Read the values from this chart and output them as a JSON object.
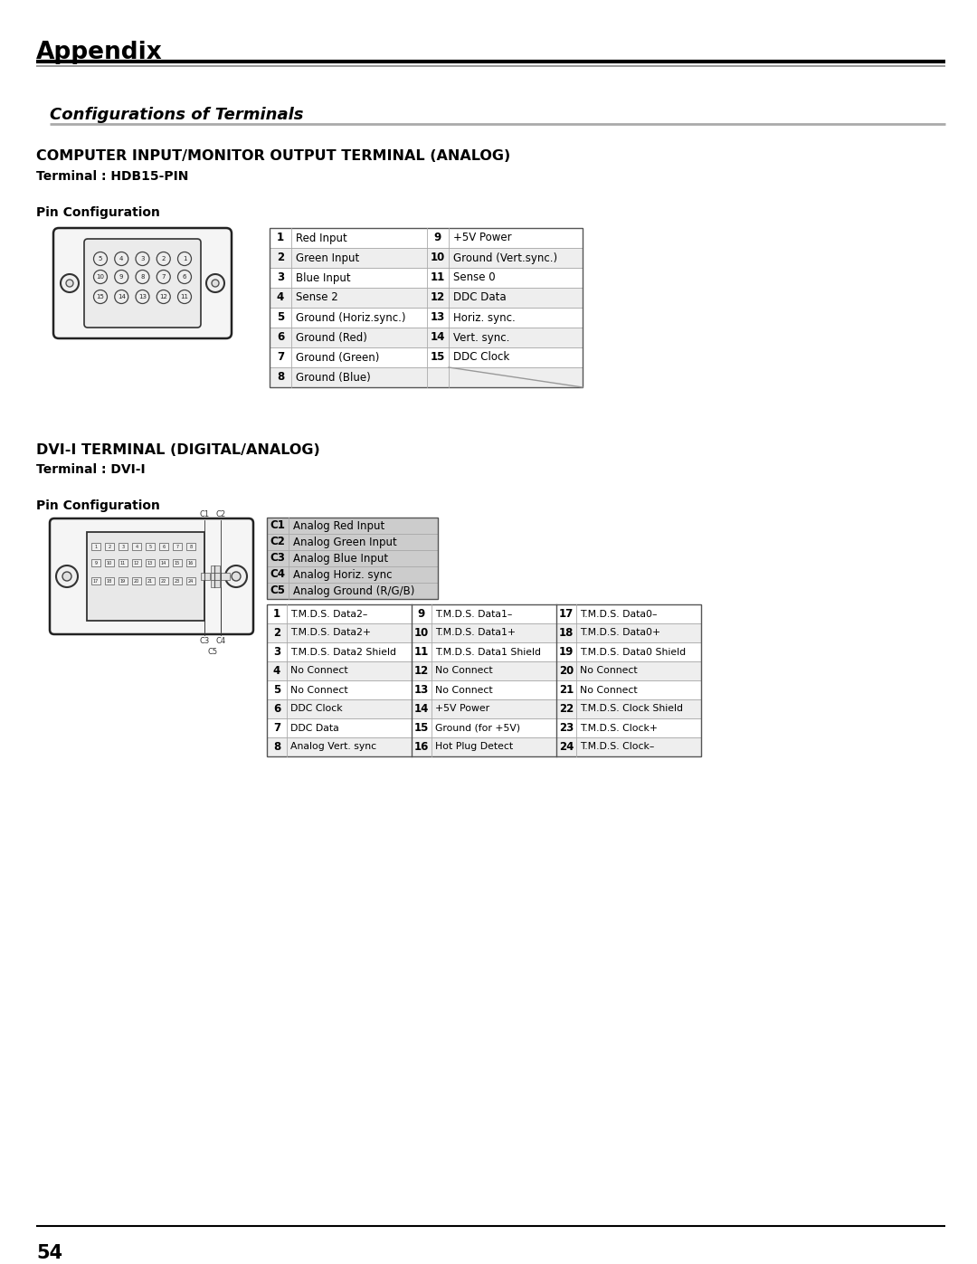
{
  "title": "Appendix",
  "section1_title": "Configurations of Terminals",
  "section2_title": "COMPUTER INPUT/MONITOR OUTPUT TERMINAL (ANALOG)",
  "section2_subtitle": "Terminal : HDB15-PIN",
  "section2_pin_label": "Pin Configuration",
  "hdb15_pins_left": [
    [
      "1",
      "Red Input"
    ],
    [
      "2",
      "Green Input"
    ],
    [
      "3",
      "Blue Input"
    ],
    [
      "4",
      "Sense 2"
    ],
    [
      "5",
      "Ground (Horiz.sync.)"
    ],
    [
      "6",
      "Ground (Red)"
    ],
    [
      "7",
      "Ground (Green)"
    ],
    [
      "8",
      "Ground (Blue)"
    ]
  ],
  "hdb15_pins_right": [
    [
      "9",
      "+5V Power"
    ],
    [
      "10",
      "Ground (Vert.sync.)"
    ],
    [
      "11",
      "Sense 0"
    ],
    [
      "12",
      "DDC Data"
    ],
    [
      "13",
      "Horiz. sync."
    ],
    [
      "14",
      "Vert. sync."
    ],
    [
      "15",
      "DDC Clock"
    ],
    [
      "",
      ""
    ]
  ],
  "section3_title": "DVI-I TERMINAL (DIGITAL/ANALOG)",
  "section3_subtitle": "Terminal : DVI-I",
  "section3_pin_label": "Pin Configuration",
  "dvi_c_pins": [
    [
      "C1",
      "Analog Red Input"
    ],
    [
      "C2",
      "Analog Green Input"
    ],
    [
      "C3",
      "Analog Blue Input"
    ],
    [
      "C4",
      "Analog Horiz. sync"
    ],
    [
      "C5",
      "Analog Ground (R/G/B)"
    ]
  ],
  "dvi_pins_col1": [
    [
      "1",
      "T.M.D.S. Data2–"
    ],
    [
      "2",
      "T.M.D.S. Data2+"
    ],
    [
      "3",
      "T.M.D.S. Data2 Shield"
    ],
    [
      "4",
      "No Connect"
    ],
    [
      "5",
      "No Connect"
    ],
    [
      "6",
      "DDC Clock"
    ],
    [
      "7",
      "DDC Data"
    ],
    [
      "8",
      "Analog Vert. sync"
    ]
  ],
  "dvi_pins_col2": [
    [
      "9",
      "T.M.D.S. Data1–"
    ],
    [
      "10",
      "T.M.D.S. Data1+"
    ],
    [
      "11",
      "T.M.D.S. Data1 Shield"
    ],
    [
      "12",
      "No Connect"
    ],
    [
      "13",
      "No Connect"
    ],
    [
      "14",
      "+5V Power"
    ],
    [
      "15",
      "Ground (for +5V)"
    ],
    [
      "16",
      "Hot Plug Detect"
    ]
  ],
  "dvi_pins_col3": [
    [
      "17",
      "T.M.D.S. Data0–"
    ],
    [
      "18",
      "T.M.D.S. Data0+"
    ],
    [
      "19",
      "T.M.D.S. Data0 Shield"
    ],
    [
      "20",
      "No Connect"
    ],
    [
      "21",
      "No Connect"
    ],
    [
      "22",
      "T.M.D.S. Clock Shield"
    ],
    [
      "23",
      "T.M.D.S. Clock+"
    ],
    [
      "24",
      "T.M.D.S. Clock–"
    ]
  ],
  "page_number": "54",
  "bg_color": "#ffffff",
  "text_color": "#000000",
  "table_border_color": "#aaaaaa",
  "table_row_bg_even": "#ffffff",
  "table_row_bg_odd": "#eeeeee"
}
